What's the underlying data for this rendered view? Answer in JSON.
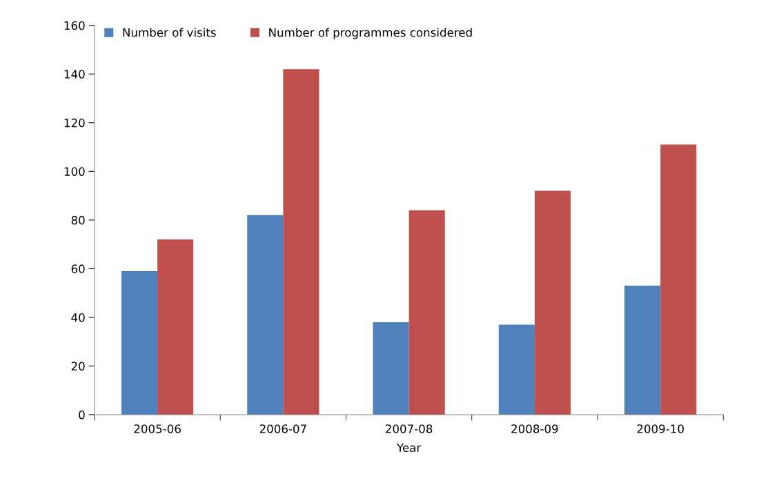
{
  "chart_data": {
    "type": "bar",
    "xlabel": "Year",
    "categories": [
      "2005-06",
      "2006-07",
      "2007-08",
      "2008-09",
      "2009-10"
    ],
    "series": [
      {
        "name": "Number of visits",
        "color": "#4f81bd",
        "values": [
          59,
          82,
          38,
          37,
          53
        ]
      },
      {
        "name": "Number of programmes considered",
        "color": "#c0504d",
        "values": [
          72,
          142,
          84,
          92,
          111
        ]
      }
    ],
    "ylim": [
      0,
      160
    ],
    "yticks": [
      0,
      20,
      40,
      60,
      80,
      100,
      120,
      140,
      160
    ],
    "grid": false,
    "legend": "top left"
  }
}
